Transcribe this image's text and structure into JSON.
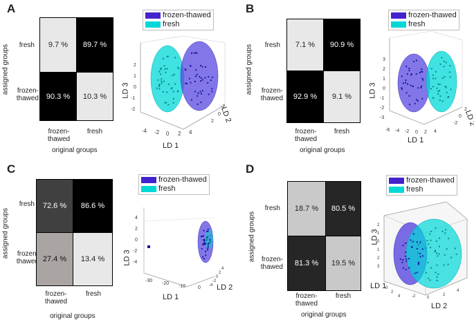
{
  "chart_data": [
    {
      "panel": "A",
      "type": "table",
      "title": "",
      "row_labels": [
        "fresh",
        "frozen-\nthawed"
      ],
      "col_labels": [
        "frozen-\nthawed",
        "fresh"
      ],
      "values": [
        [
          "9.7 %",
          "89.7 %"
        ],
        [
          "90.3 %",
          "10.3 %"
        ]
      ],
      "numeric": [
        [
          9.7,
          89.7
        ],
        [
          90.3,
          10.3
        ]
      ],
      "ylabel": "assigned groups",
      "xlabel": "original groups",
      "scatter": {
        "legend": [
          "frozen-thawed",
          "fresh"
        ],
        "colors": [
          "#4422cc",
          "#00d8d8"
        ],
        "axes": [
          "LD 1",
          "LD 2",
          "LD 3"
        ],
        "ld1_ticks": [
          "-4",
          "-2",
          "0",
          "2",
          "4"
        ],
        "ld2_ticks": [
          "-2",
          "0",
          "2"
        ],
        "ld3_ticks": [
          "-2",
          "-1",
          "0",
          "1",
          "2"
        ]
      }
    },
    {
      "panel": "B",
      "type": "table",
      "row_labels": [
        "fresh",
        "frozen-\nthawed"
      ],
      "col_labels": [
        "frozen-\nthawed",
        "fresh"
      ],
      "values": [
        [
          "7.1 %",
          "90.9 %"
        ],
        [
          "92.9 %",
          "9.1 %"
        ]
      ],
      "numeric": [
        [
          7.1,
          90.9
        ],
        [
          92.9,
          9.1
        ]
      ],
      "ylabel": "assigned groups",
      "xlabel": "original groups",
      "scatter": {
        "legend": [
          "frozen-thawed",
          "fresh"
        ],
        "colors": [
          "#4422cc",
          "#00d8d8"
        ],
        "axes": [
          "LD 1",
          "LD 2",
          "LD 3"
        ],
        "ld1_ticks": [
          "-6",
          "-4",
          "-2",
          "0",
          "2",
          "4"
        ],
        "ld2_ticks": [
          "-2",
          "0",
          "2"
        ],
        "ld3_ticks": [
          "-3",
          "-2",
          "-1",
          "0",
          "1",
          "2",
          "3"
        ]
      }
    },
    {
      "panel": "C",
      "type": "table",
      "row_labels": [
        "fresh",
        "frozen-\nthawed"
      ],
      "col_labels": [
        "frozen-\nthawed",
        "fresh"
      ],
      "values": [
        [
          "72.6 %",
          "86.6 %"
        ],
        [
          "27.4 %",
          "13.4 %"
        ]
      ],
      "numeric": [
        [
          72.6,
          86.6
        ],
        [
          27.4,
          13.4
        ]
      ],
      "ylabel": "assigned groups",
      "xlabel": "original groups",
      "scatter": {
        "legend": [
          "frozen-thawed",
          "fresh"
        ],
        "colors": [
          "#4422cc",
          "#00d8d8"
        ],
        "axes": [
          "LD 1",
          "LD 2",
          "LD 3"
        ],
        "ld1_ticks": [
          "-30",
          "-20",
          "-10",
          "0"
        ],
        "ld2_ticks": [
          "-4",
          "-2",
          "0",
          "2",
          "4"
        ],
        "ld3_ticks": [
          "-4",
          "-2",
          "0",
          "2",
          "4"
        ]
      }
    },
    {
      "panel": "D",
      "type": "table",
      "row_labels": [
        "fresh",
        "frozen-\nthawed"
      ],
      "col_labels": [
        "frozen-\nthawed",
        "fresh"
      ],
      "values": [
        [
          "18.7 %",
          "80.5 %"
        ],
        [
          "81.3 %",
          "19.5 %"
        ]
      ],
      "numeric": [
        [
          18.7,
          80.5
        ],
        [
          81.3,
          19.5
        ]
      ],
      "ylabel": "assigned groups",
      "xlabel": "original groups",
      "scatter": {
        "legend": [
          "frozen-thawed",
          "fresh"
        ],
        "colors": [
          "#4422cc",
          "#00d8d8"
        ],
        "axes": [
          "LD 1",
          "LD 2",
          "LD 3"
        ],
        "ld1_ticks": [
          "0",
          "2",
          "4"
        ],
        "ld2_ticks": [
          "-2",
          "0",
          "2",
          "4"
        ],
        "ld3_ticks": [
          "-3",
          "-2",
          "-1",
          "0",
          "1",
          "2"
        ]
      }
    }
  ]
}
